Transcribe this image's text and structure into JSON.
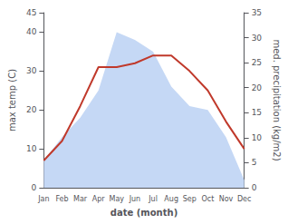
{
  "chart_data": {
    "type": "line",
    "categories": [
      "Jan",
      "Feb",
      "Mar",
      "Apr",
      "May",
      "Jun",
      "Jul",
      "Aug",
      "Sep",
      "Oct",
      "Nov",
      "Dec"
    ],
    "series": [
      {
        "type": "area",
        "color": "#c5d8f5",
        "values": [
          7,
          13,
          18,
          25,
          40,
          38,
          35,
          26,
          21,
          20,
          13,
          2
        ]
      },
      {
        "type": "line",
        "color": "#c0392b",
        "values": [
          7,
          12,
          21,
          31,
          31,
          32,
          34,
          34,
          30,
          25,
          17,
          10
        ]
      }
    ],
    "xlabel": "date (month)",
    "ylabel": "max temp (C)",
    "y2label": "med. precipitation (kg/m2)",
    "ylim": [
      0,
      45
    ],
    "yticks": [
      0,
      10,
      20,
      30,
      40
    ],
    "y2lim": [
      0,
      35
    ],
    "y2ticks": [
      0,
      5,
      10,
      15,
      20,
      25,
      30,
      35
    ],
    "grid": false
  }
}
